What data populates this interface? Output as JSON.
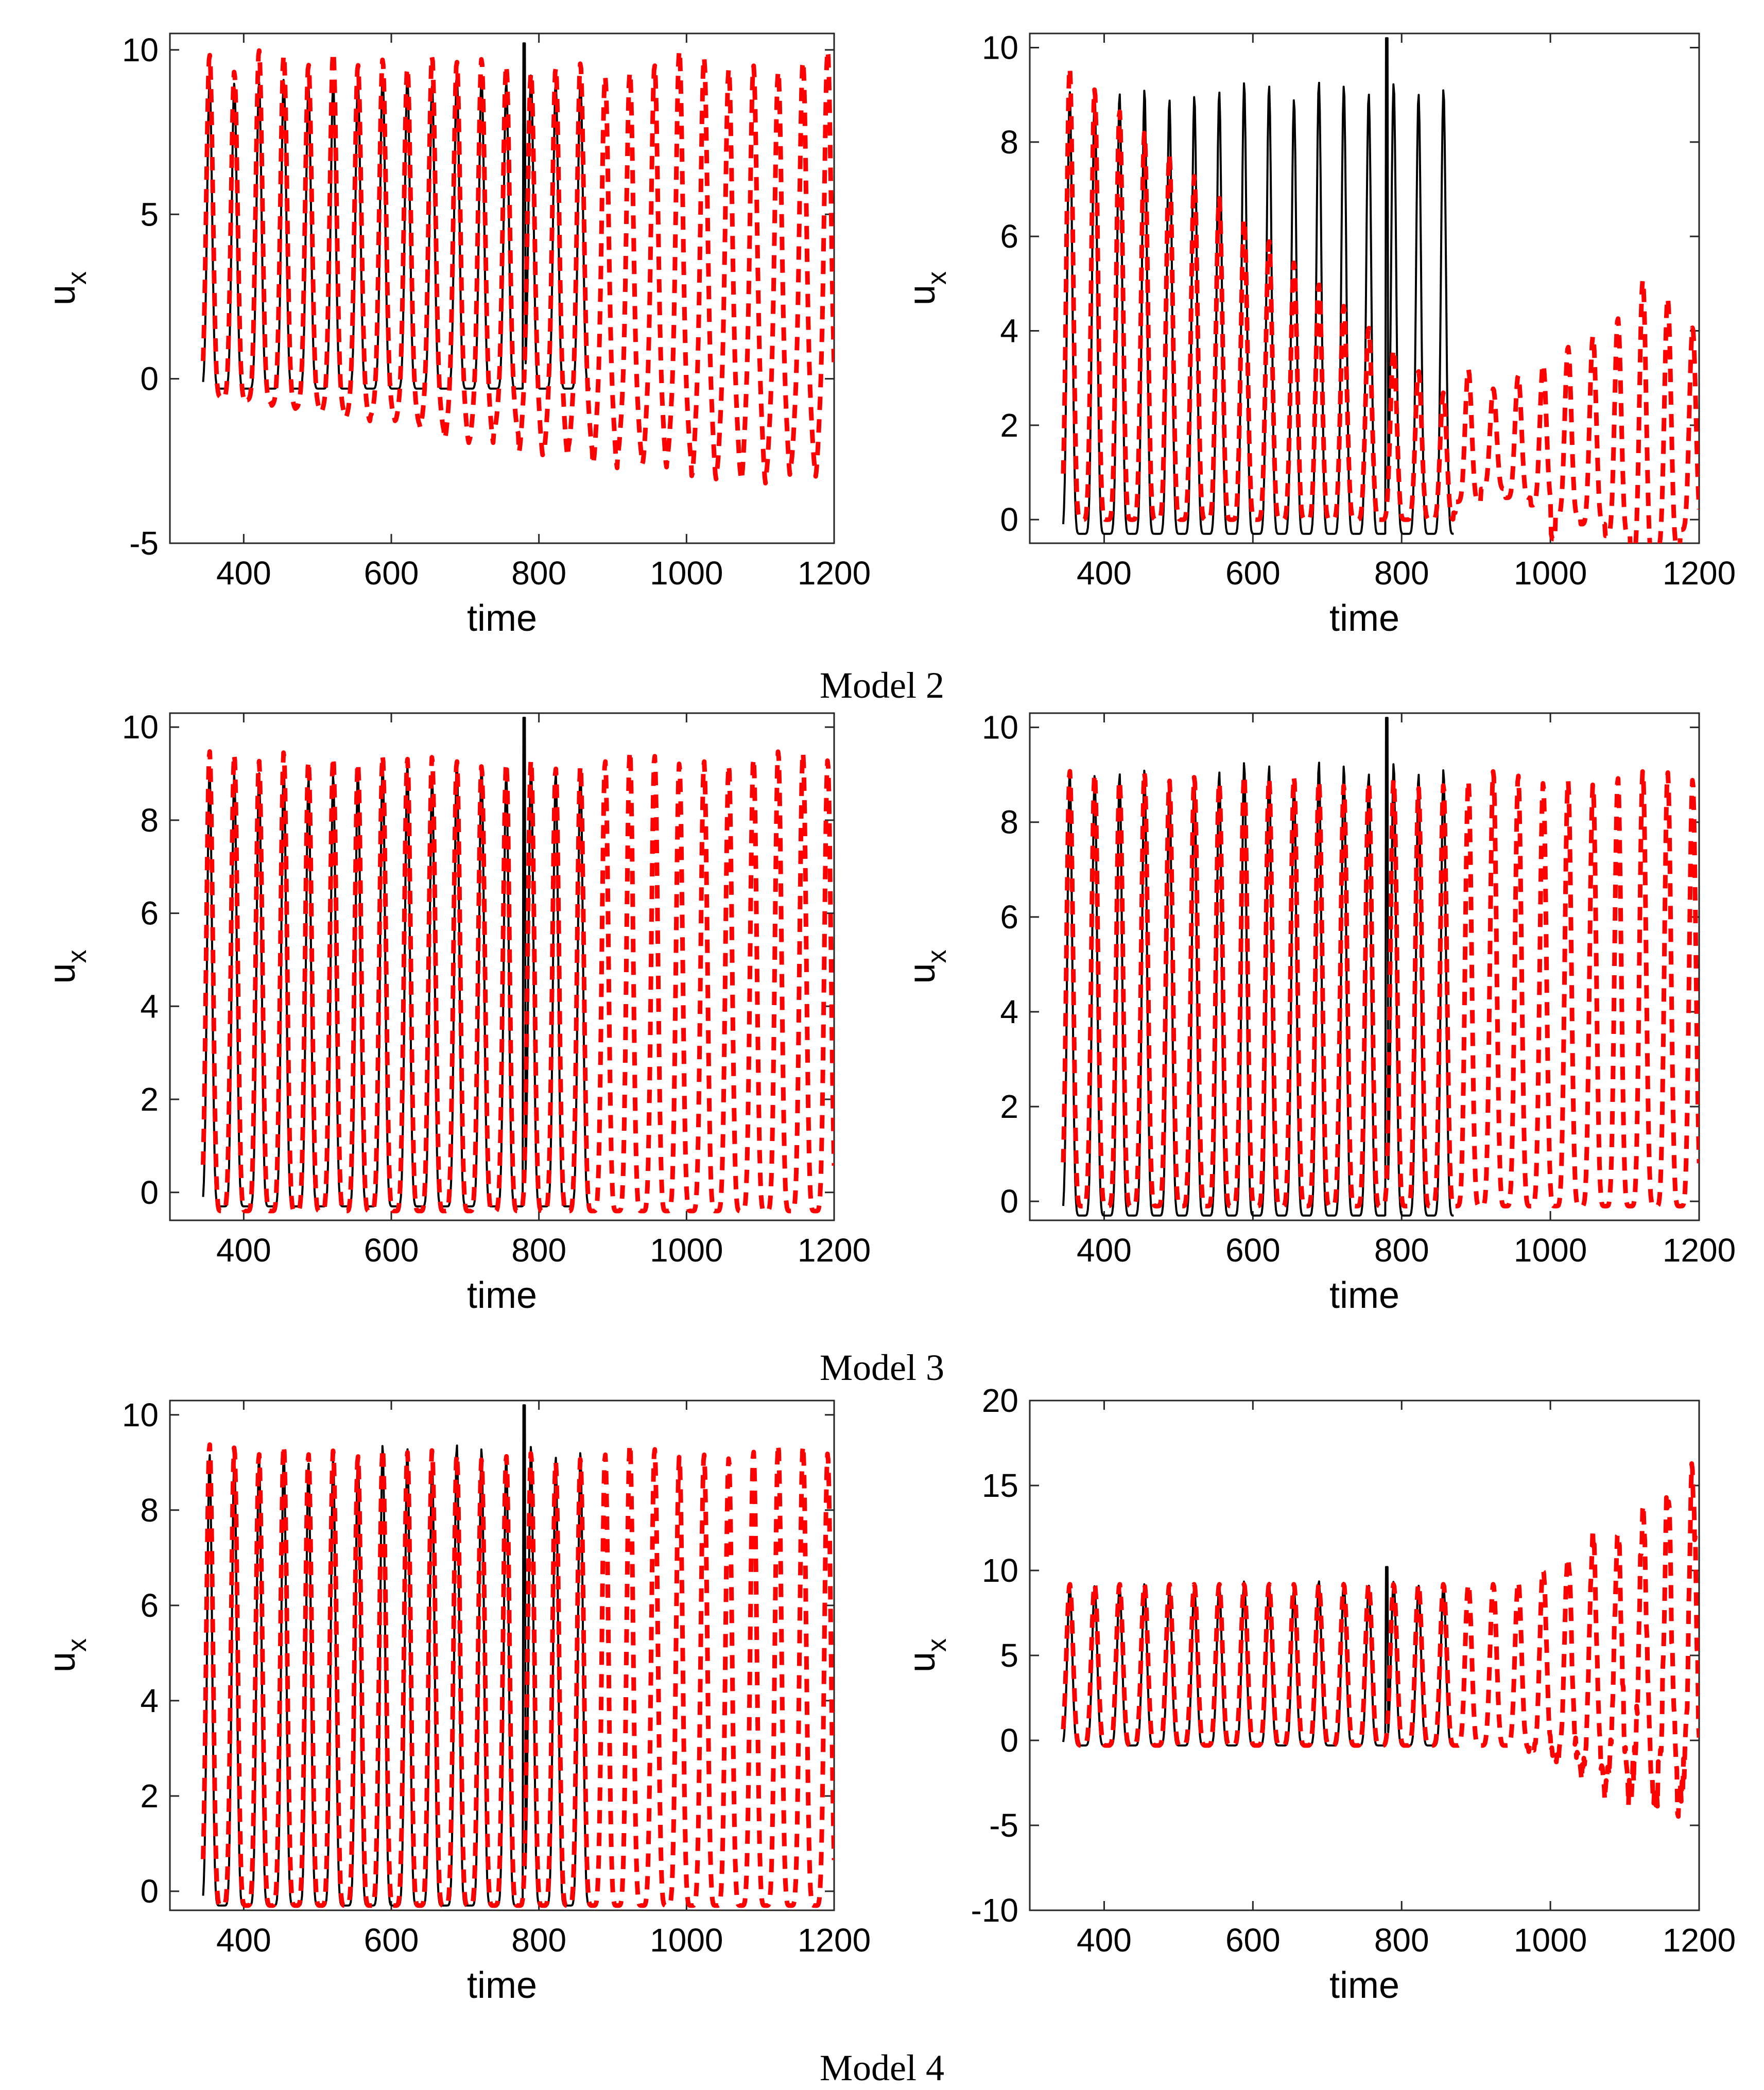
{
  "colors": {
    "reference": "#000000",
    "prediction": "#ff0000"
  },
  "captions": [
    {
      "id": "model-2",
      "text": "Model 2"
    },
    {
      "id": "model-3",
      "text": "Model 3"
    },
    {
      "id": "model-4",
      "text": "Model 4"
    }
  ],
  "chart_data": [
    {
      "type": "line",
      "id": "row1-left",
      "xlabel": "time",
      "ylabel": "u",
      "ylabel_sub": "x",
      "xlim": [
        300,
        1200
      ],
      "xticks": [
        400,
        600,
        800,
        1000,
        1200
      ],
      "ylim": [
        -5,
        10.5
      ],
      "yticks": [
        -5,
        0,
        5,
        10
      ],
      "series": [
        {
          "name": "reference",
          "style": "solid",
          "x_range": [
            345,
            870
          ],
          "period": 33.5,
          "baseline": -0.3,
          "peak": 9.1,
          "spike": [
            780,
            10.2
          ]
        },
        {
          "name": "prediction",
          "style": "dashed",
          "x_range": [
            345,
            1200
          ],
          "period": 33.5,
          "baseline": -0.5,
          "peak": 10.0,
          "trough_min": -4.0,
          "trough_growth": true
        }
      ]
    },
    {
      "type": "line",
      "id": "row1-right",
      "xlabel": "time",
      "ylabel": "u",
      "ylabel_sub": "x",
      "xlim": [
        300,
        1200
      ],
      "xticks": [
        400,
        600,
        800,
        1000,
        1200
      ],
      "ylim": [
        -0.5,
        10.3
      ],
      "yticks": [
        0,
        2,
        4,
        6,
        8,
        10
      ],
      "series": [
        {
          "name": "reference",
          "style": "solid",
          "x_range": [
            345,
            870
          ],
          "period": 33.5,
          "baseline": -0.3,
          "peak": 9.1,
          "spike": [
            780,
            10.2
          ]
        },
        {
          "name": "prediction",
          "style": "dashed",
          "x_range": [
            345,
            1200
          ],
          "period": 33.5,
          "decay_from": 9.7,
          "decay_to": 2.5,
          "baseline": 0.0,
          "late_level": 1.5
        }
      ]
    },
    {
      "type": "line",
      "id": "row2-left",
      "xlabel": "time",
      "ylabel": "u",
      "ylabel_sub": "x",
      "xlim": [
        300,
        1200
      ],
      "xticks": [
        400,
        600,
        800,
        1000,
        1200
      ],
      "ylim": [
        -0.6,
        10.3
      ],
      "yticks": [
        0,
        2,
        4,
        6,
        8,
        10
      ],
      "series": [
        {
          "name": "reference",
          "style": "solid",
          "x_range": [
            345,
            870
          ],
          "period": 33.5,
          "baseline": -0.3,
          "peak": 9.1,
          "spike": [
            780,
            10.2
          ]
        },
        {
          "name": "prediction",
          "style": "dashed",
          "x_range": [
            345,
            1200
          ],
          "period": 33.5,
          "baseline": -0.4,
          "peak": 9.4
        }
      ]
    },
    {
      "type": "line",
      "id": "row2-right",
      "xlabel": "time",
      "ylabel": "u",
      "ylabel_sub": "x",
      "xlim": [
        300,
        1200
      ],
      "xticks": [
        400,
        600,
        800,
        1000,
        1200
      ],
      "ylim": [
        -0.4,
        10.3
      ],
      "yticks": [
        0,
        2,
        4,
        6,
        8,
        10
      ],
      "series": [
        {
          "name": "reference",
          "style": "solid",
          "x_range": [
            345,
            870
          ],
          "period": 33.5,
          "baseline": -0.3,
          "peak": 9.1,
          "spike": [
            780,
            10.2
          ]
        },
        {
          "name": "prediction",
          "style": "dashed",
          "x_range": [
            345,
            1200
          ],
          "period": 33.5,
          "baseline": -0.1,
          "peak": 9.0
        }
      ]
    },
    {
      "type": "line",
      "id": "row3-left",
      "xlabel": "time",
      "ylabel": "u",
      "ylabel_sub": "x",
      "xlim": [
        300,
        1200
      ],
      "xticks": [
        400,
        600,
        800,
        1000,
        1200
      ],
      "ylim": [
        -0.4,
        10.3
      ],
      "yticks": [
        0,
        2,
        4,
        6,
        8,
        10
      ],
      "series": [
        {
          "name": "reference",
          "style": "solid",
          "x_range": [
            345,
            870
          ],
          "period": 33.5,
          "baseline": -0.3,
          "peak": 9.2,
          "spike": [
            780,
            10.2
          ]
        },
        {
          "name": "prediction",
          "style": "dashed",
          "x_range": [
            345,
            1200
          ],
          "period": 33.5,
          "baseline": -0.3,
          "peak": 9.3
        }
      ]
    },
    {
      "type": "line",
      "id": "row3-right",
      "xlabel": "time",
      "ylabel": "u",
      "ylabel_sub": "x",
      "xlim": [
        300,
        1200
      ],
      "xticks": [
        400,
        600,
        800,
        1000,
        1200
      ],
      "ylim": [
        -10,
        20
      ],
      "yticks": [
        -10,
        -5,
        0,
        5,
        10,
        15,
        20
      ],
      "series": [
        {
          "name": "reference",
          "style": "solid",
          "x_range": [
            345,
            870
          ],
          "period": 33.5,
          "baseline": -0.3,
          "peak": 9.2,
          "spike": [
            780,
            10.2
          ]
        },
        {
          "name": "prediction",
          "style": "dashed",
          "x_range": [
            345,
            1200
          ],
          "period": 33.5,
          "baseline": -0.3,
          "peak": 9.2,
          "growth_after": 950,
          "peak_max": 16.0,
          "trough_max": -5.0
        }
      ]
    }
  ]
}
